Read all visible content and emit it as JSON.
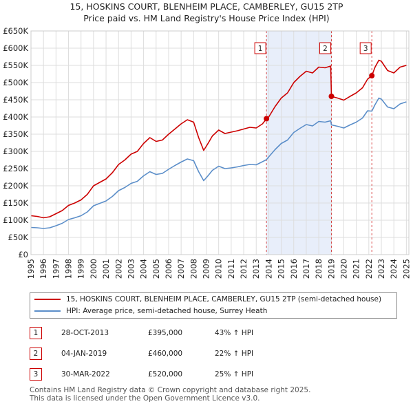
{
  "header": {
    "title": "15, HOSKINS COURT, BLENHEIM PLACE, CAMBERLEY, GU15 2TP",
    "subtitle": "Price paid vs. HM Land Registry's House Price Index (HPI)"
  },
  "chart_data": {
    "type": "line",
    "title": "15, HOSKINS COURT, BLENHEIM PLACE, CAMBERLEY, GU15 2TP",
    "subtitle": "Price paid vs. HM Land Registry's House Price Index (HPI)",
    "xlim": [
      1995,
      2025.2
    ],
    "ylim": [
      0,
      650000
    ],
    "x_ticks": [
      "1995",
      "1996",
      "1997",
      "1998",
      "1999",
      "2000",
      "2001",
      "2002",
      "2003",
      "2004",
      "2005",
      "2006",
      "2007",
      "2008",
      "2009",
      "2010",
      "2011",
      "2012",
      "2013",
      "2014",
      "2015",
      "2016",
      "2017",
      "2018",
      "2019",
      "2020",
      "2021",
      "2022",
      "2023",
      "2024",
      "2025"
    ],
    "y_ticks": [
      {
        "v": 0,
        "label": "£0"
      },
      {
        "v": 50000,
        "label": "£50K"
      },
      {
        "v": 100000,
        "label": "£100K"
      },
      {
        "v": 150000,
        "label": "£150K"
      },
      {
        "v": 200000,
        "label": "£200K"
      },
      {
        "v": 250000,
        "label": "£250K"
      },
      {
        "v": 300000,
        "label": "£300K"
      },
      {
        "v": 350000,
        "label": "£350K"
      },
      {
        "v": 400000,
        "label": "£400K"
      },
      {
        "v": 450000,
        "label": "£450K"
      },
      {
        "v": 500000,
        "label": "£500K"
      },
      {
        "v": 550000,
        "label": "£550K"
      },
      {
        "v": 600000,
        "label": "£600K"
      },
      {
        "v": 650000,
        "label": "£650K"
      }
    ],
    "grid": true,
    "shaded_range": [
      2013.82,
      2019.01
    ],
    "series": [
      {
        "name": "15, HOSKINS COURT, BLENHEIM PLACE, CAMBERLEY, GU15 2TP (semi-detached house)",
        "color": "#cc0000",
        "x": [
          1995.0,
          1995.5,
          1996.0,
          1996.5,
          1997.0,
          1997.5,
          1998.0,
          1998.5,
          1999.0,
          1999.5,
          2000.0,
          2000.5,
          2001.0,
          2001.5,
          2002.0,
          2002.5,
          2003.0,
          2003.5,
          2004.0,
          2004.5,
          2005.0,
          2005.5,
          2006.0,
          2006.5,
          2007.0,
          2007.5,
          2008.0,
          2008.4,
          2008.8,
          2009.1,
          2009.5,
          2010.0,
          2010.5,
          2011.0,
          2011.5,
          2012.0,
          2012.5,
          2013.0,
          2013.5,
          2013.82,
          2014.0,
          2014.5,
          2015.0,
          2015.5,
          2016.0,
          2016.5,
          2017.0,
          2017.5,
          2018.0,
          2018.5,
          2018.95,
          2019.01,
          2019.5,
          2020.0,
          2020.5,
          2021.0,
          2021.5,
          2021.9,
          2022.24,
          2022.5,
          2022.8,
          2023.0,
          2023.5,
          2024.0,
          2024.5,
          2025.0
        ],
        "y": [
          113000,
          111000,
          107000,
          110000,
          119000,
          128000,
          143000,
          150000,
          159000,
          175000,
          200000,
          210000,
          220000,
          238000,
          262000,
          275000,
          292000,
          300000,
          323000,
          340000,
          329000,
          333000,
          350000,
          365000,
          380000,
          392000,
          385000,
          340000,
          303000,
          320000,
          345000,
          362000,
          352000,
          356000,
          360000,
          365000,
          370000,
          368000,
          380000,
          395000,
          400000,
          430000,
          455000,
          470000,
          500000,
          518000,
          533000,
          528000,
          545000,
          543000,
          548000,
          460000,
          455000,
          449000,
          460000,
          470000,
          485000,
          510000,
          520000,
          545000,
          565000,
          562000,
          535000,
          528000,
          545000,
          550000
        ]
      },
      {
        "name": "HPI: Average price, semi-detached house, Surrey Heath",
        "color": "#5b8ec9",
        "x": [
          1995.0,
          1995.5,
          1996.0,
          1996.5,
          1997.0,
          1997.5,
          1998.0,
          1998.5,
          1999.0,
          1999.5,
          2000.0,
          2000.5,
          2001.0,
          2001.5,
          2002.0,
          2002.5,
          2003.0,
          2003.5,
          2004.0,
          2004.5,
          2005.0,
          2005.5,
          2006.0,
          2006.5,
          2007.0,
          2007.5,
          2008.0,
          2008.4,
          2008.8,
          2009.1,
          2009.5,
          2010.0,
          2010.5,
          2011.0,
          2011.5,
          2012.0,
          2012.5,
          2013.0,
          2013.5,
          2013.82,
          2014.0,
          2014.5,
          2015.0,
          2015.5,
          2016.0,
          2016.5,
          2017.0,
          2017.5,
          2018.0,
          2018.5,
          2018.95,
          2019.01,
          2019.5,
          2020.0,
          2020.5,
          2021.0,
          2021.5,
          2021.9,
          2022.24,
          2022.5,
          2022.8,
          2023.0,
          2023.5,
          2024.0,
          2024.5,
          2025.0
        ],
        "y": [
          79000,
          78000,
          76000,
          78000,
          84000,
          91000,
          102000,
          107000,
          113000,
          124000,
          142000,
          149000,
          156000,
          169000,
          186000,
          195000,
          207000,
          213000,
          229000,
          241000,
          233000,
          236000,
          248000,
          259000,
          269000,
          278000,
          273000,
          241000,
          215000,
          227000,
          245000,
          257000,
          250000,
          252000,
          255000,
          259000,
          262000,
          261000,
          270000,
          276000,
          284000,
          305000,
          323000,
          333000,
          355000,
          367000,
          378000,
          374000,
          387000,
          385000,
          389000,
          377000,
          373000,
          368000,
          377000,
          385000,
          397000,
          418000,
          417000,
          436000,
          455000,
          452000,
          429000,
          424000,
          438000,
          444000
        ]
      }
    ],
    "annotations": [
      {
        "label": "1",
        "x": 2013.82,
        "y": 395000
      },
      {
        "label": "2",
        "x": 2019.01,
        "y": 460000
      },
      {
        "label": "3",
        "x": 2022.24,
        "y": 520000
      }
    ]
  },
  "legend": {
    "property": "15, HOSKINS COURT, BLENHEIM PLACE, CAMBERLEY, GU15 2TP (semi-detached house)",
    "hpi": "HPI: Average price, semi-detached house, Surrey Heath",
    "property_color": "#cc0000",
    "hpi_color": "#5b8ec9"
  },
  "sales": [
    {
      "num": "1",
      "date": "28-OCT-2013",
      "price": "£395,000",
      "hpi": "43% ↑ HPI"
    },
    {
      "num": "2",
      "date": "04-JAN-2019",
      "price": "£460,000",
      "hpi": "22% ↑ HPI"
    },
    {
      "num": "3",
      "date": "30-MAR-2022",
      "price": "£520,000",
      "hpi": "25% ↑ HPI"
    }
  ],
  "footer": {
    "line1": "Contains HM Land Registry data © Crown copyright and database right 2025.",
    "line2": "This data is licensed under the Open Government Licence v3.0."
  }
}
